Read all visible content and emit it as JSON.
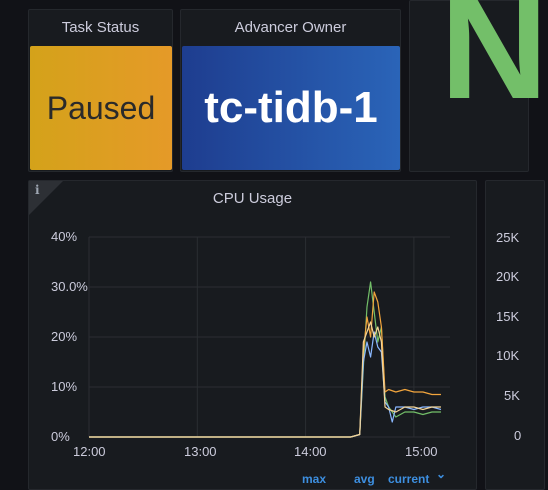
{
  "task_status": {
    "title": "Task Status",
    "value": "Paused"
  },
  "advancer_owner": {
    "title": "Advancer Owner",
    "value": "tc-tidb-1"
  },
  "big_stat": {
    "value": "N",
    "color": "#73bf69"
  },
  "cpu_panel": {
    "title": "CPU Usage",
    "info_icon": "i",
    "legend_headers": [
      "max",
      "avg",
      "current"
    ],
    "current_chevron": "⌄"
  },
  "chart_data": {
    "type": "line",
    "title": "CPU Usage",
    "yticks": [
      "40%",
      "30.0%",
      "20%",
      "10%",
      "0%"
    ],
    "xticks": [
      "12:00",
      "13:00",
      "14:00",
      "15:00"
    ],
    "ylim": [
      0,
      40
    ],
    "x_range": [
      "12:00",
      "15:20"
    ],
    "grid": true,
    "series": [
      {
        "color": "#73bf69",
        "points": [
          [
            "12:00",
            0
          ],
          [
            "14:25",
            0
          ],
          [
            "14:30",
            0.5
          ],
          [
            "14:32",
            14
          ],
          [
            "14:34",
            26
          ],
          [
            "14:36",
            31
          ],
          [
            "14:38",
            25
          ],
          [
            "14:40",
            19
          ],
          [
            "14:42",
            22
          ],
          [
            "14:44",
            8
          ],
          [
            "14:46",
            6
          ],
          [
            "14:50",
            4
          ],
          [
            "14:55",
            5
          ],
          [
            "15:00",
            5
          ],
          [
            "15:05",
            4.5
          ],
          [
            "15:10",
            5
          ],
          [
            "15:15",
            5
          ]
        ]
      },
      {
        "color": "#f2a53d",
        "points": [
          [
            "12:00",
            0
          ],
          [
            "14:25",
            0
          ],
          [
            "14:30",
            0.5
          ],
          [
            "14:32",
            17
          ],
          [
            "14:34",
            24
          ],
          [
            "14:36",
            20
          ],
          [
            "14:38",
            29
          ],
          [
            "14:40",
            27
          ],
          [
            "14:42",
            22
          ],
          [
            "14:44",
            9
          ],
          [
            "14:46",
            9.5
          ],
          [
            "14:50",
            9
          ],
          [
            "14:55",
            9.5
          ],
          [
            "15:00",
            9
          ],
          [
            "15:05",
            9
          ],
          [
            "15:10",
            8.5
          ],
          [
            "15:15",
            8.5
          ]
        ]
      },
      {
        "color": "#8ab8ff",
        "points": [
          [
            "12:00",
            0
          ],
          [
            "14:25",
            0
          ],
          [
            "14:30",
            0.5
          ],
          [
            "14:32",
            15
          ],
          [
            "14:34",
            19
          ],
          [
            "14:36",
            16
          ],
          [
            "14:38",
            21
          ],
          [
            "14:40",
            18
          ],
          [
            "14:42",
            17
          ],
          [
            "14:44",
            7
          ],
          [
            "14:46",
            6
          ],
          [
            "14:48",
            3
          ],
          [
            "14:50",
            6
          ],
          [
            "14:55",
            6
          ],
          [
            "15:00",
            5.5
          ],
          [
            "15:05",
            6
          ],
          [
            "15:10",
            6
          ],
          [
            "15:15",
            5.5
          ]
        ]
      },
      {
        "color": "#f4d598",
        "points": [
          [
            "12:00",
            0
          ],
          [
            "14:25",
            0
          ],
          [
            "14:30",
            0.5
          ],
          [
            "14:32",
            19
          ],
          [
            "14:34",
            21
          ],
          [
            "14:36",
            23
          ],
          [
            "14:38",
            20
          ],
          [
            "14:40",
            22
          ],
          [
            "14:42",
            19
          ],
          [
            "14:44",
            6
          ],
          [
            "14:46",
            5.5
          ],
          [
            "14:50",
            5
          ],
          [
            "14:55",
            6
          ],
          [
            "15:00",
            6
          ],
          [
            "15:05",
            5.5
          ],
          [
            "15:10",
            6
          ],
          [
            "15:15",
            6
          ]
        ]
      }
    ]
  },
  "right_panel": {
    "yticks": [
      "25K",
      "20K",
      "15K",
      "10K",
      "5K",
      "0"
    ]
  }
}
